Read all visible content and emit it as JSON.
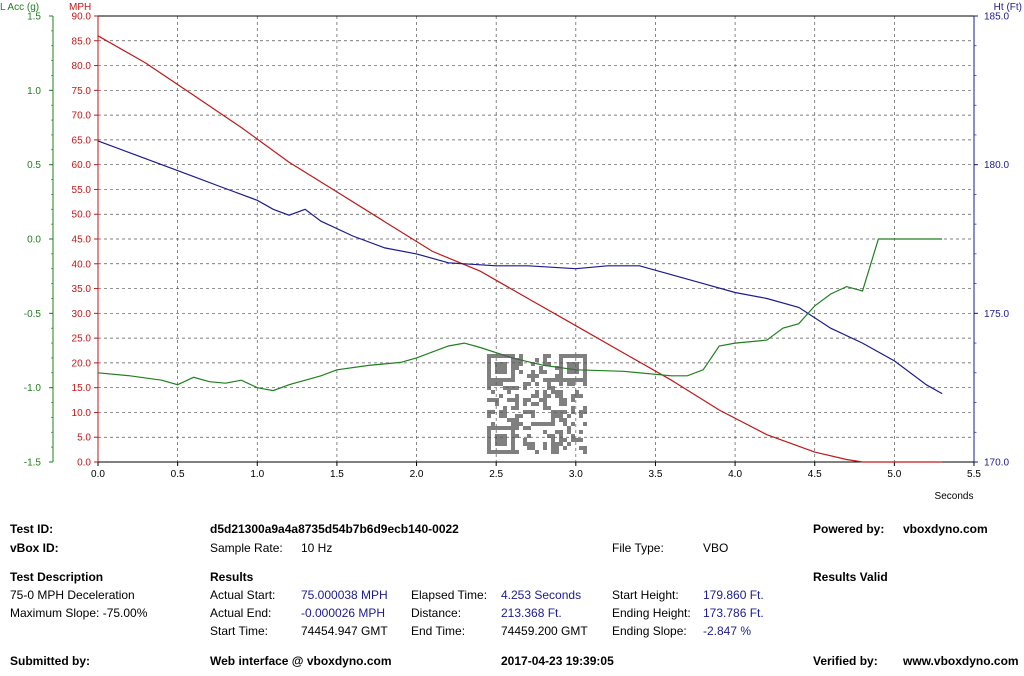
{
  "chart_data": {
    "type": "line",
    "x_label": "Seconds",
    "x_range": [
      0.0,
      5.5
    ],
    "x_ticks": [
      "0.0",
      "0.5",
      "1.0",
      "1.5",
      "2.0",
      "2.5",
      "3.0",
      "3.5",
      "4.0",
      "4.5",
      "5.0",
      "5.5"
    ],
    "grid": true,
    "axes": {
      "lacc": {
        "label": "L Acc (g)",
        "range": [
          -1.5,
          1.5
        ],
        "ticks": [
          "1.5",
          "1.0",
          "0.5",
          "0.0",
          "-0.5",
          "-1.0",
          "-1.5"
        ],
        "color": "#208020"
      },
      "mph": {
        "label": "MPH",
        "range": [
          0,
          90
        ],
        "ticks": [
          "90.0",
          "85.0",
          "80.0",
          "75.0",
          "70.0",
          "65.0",
          "60.0",
          "55.0",
          "50.0",
          "45.0",
          "40.0",
          "35.0",
          "30.0",
          "25.0",
          "20.0",
          "15.0",
          "10.0",
          "5.0",
          "0.0"
        ],
        "color": "#c01818"
      },
      "ht": {
        "label": "Ht (Ft)",
        "range": [
          170,
          185
        ],
        "ticks": [
          "185.0",
          "180.0",
          "175.0",
          "170.0"
        ],
        "color": "#1c1c8c"
      }
    },
    "series": [
      {
        "axis": "mph",
        "color": "#c01818",
        "points": [
          [
            0,
            86
          ],
          [
            0.3,
            80.5
          ],
          [
            0.6,
            74
          ],
          [
            0.9,
            67.5
          ],
          [
            1.2,
            60.5
          ],
          [
            1.5,
            54.5
          ],
          [
            1.8,
            48.5
          ],
          [
            2.1,
            42.5
          ],
          [
            2.4,
            38.5
          ],
          [
            2.7,
            33
          ],
          [
            3.0,
            27.5
          ],
          [
            3.3,
            22
          ],
          [
            3.6,
            16.5
          ],
          [
            3.9,
            10.5
          ],
          [
            4.2,
            5.5
          ],
          [
            4.5,
            2
          ],
          [
            4.7,
            0.5
          ],
          [
            4.8,
            0
          ],
          [
            5.3,
            0
          ]
        ]
      },
      {
        "axis": "ht",
        "color": "#1c1c8c",
        "points": [
          [
            0,
            180.8
          ],
          [
            0.2,
            180.4
          ],
          [
            0.4,
            180.0
          ],
          [
            0.5,
            179.8
          ],
          [
            0.6,
            179.6
          ],
          [
            0.8,
            179.2
          ],
          [
            1.0,
            178.8
          ],
          [
            1.1,
            178.5
          ],
          [
            1.2,
            178.3
          ],
          [
            1.3,
            178.5
          ],
          [
            1.4,
            178.1
          ],
          [
            1.6,
            177.6
          ],
          [
            1.8,
            177.2
          ],
          [
            2.0,
            177.0
          ],
          [
            2.2,
            176.7
          ],
          [
            2.5,
            176.6
          ],
          [
            2.7,
            176.6
          ],
          [
            3.0,
            176.5
          ],
          [
            3.2,
            176.6
          ],
          [
            3.4,
            176.6
          ],
          [
            3.6,
            176.3
          ],
          [
            3.8,
            176.0
          ],
          [
            4.0,
            175.7
          ],
          [
            4.2,
            175.5
          ],
          [
            4.4,
            175.2
          ],
          [
            4.6,
            174.5
          ],
          [
            4.8,
            174.0
          ],
          [
            5.0,
            173.4
          ],
          [
            5.2,
            172.6
          ],
          [
            5.3,
            172.3
          ]
        ]
      },
      {
        "axis": "lacc",
        "color": "#208020",
        "points": [
          [
            0,
            -0.9
          ],
          [
            0.2,
            -0.92
          ],
          [
            0.4,
            -0.95
          ],
          [
            0.5,
            -0.98
          ],
          [
            0.6,
            -0.93
          ],
          [
            0.7,
            -0.96
          ],
          [
            0.8,
            -0.97
          ],
          [
            0.9,
            -0.95
          ],
          [
            1.0,
            -1.0
          ],
          [
            1.1,
            -1.02
          ],
          [
            1.2,
            -0.98
          ],
          [
            1.4,
            -0.92
          ],
          [
            1.5,
            -0.88
          ],
          [
            1.7,
            -0.85
          ],
          [
            1.9,
            -0.83
          ],
          [
            2.0,
            -0.8
          ],
          [
            2.2,
            -0.72
          ],
          [
            2.3,
            -0.7
          ],
          [
            2.4,
            -0.73
          ],
          [
            2.6,
            -0.8
          ],
          [
            2.8,
            -0.85
          ],
          [
            3.0,
            -0.88
          ],
          [
            3.3,
            -0.89
          ],
          [
            3.6,
            -0.92
          ],
          [
            3.7,
            -0.92
          ],
          [
            3.8,
            -0.88
          ],
          [
            3.9,
            -0.72
          ],
          [
            4.0,
            -0.7
          ],
          [
            4.2,
            -0.68
          ],
          [
            4.3,
            -0.6
          ],
          [
            4.4,
            -0.57
          ],
          [
            4.5,
            -0.45
          ],
          [
            4.6,
            -0.37
          ],
          [
            4.7,
            -0.32
          ],
          [
            4.8,
            -0.35
          ],
          [
            4.9,
            0
          ],
          [
            5.3,
            0
          ]
        ]
      }
    ]
  },
  "info": {
    "test_id_label": "Test ID:",
    "test_id_value": "d5d21300a9a4a8735d54b7b6d9ecb140-0022",
    "powered_label": "Powered by:",
    "powered_value": "vboxdyno.com",
    "vbox_id_label": "vBox ID:",
    "sample_rate_label": "Sample Rate:",
    "sample_rate_value": "10 Hz",
    "file_type_label": "File Type:",
    "file_type_value": "VBO",
    "test_desc_label": "Test Description",
    "test_desc_line1": "75-0 MPH Deceleration",
    "test_desc_line2": "Maximum Slope:  -75.00%",
    "results_label": "Results",
    "results_valid": "Results Valid",
    "actual_start_label": "Actual Start:",
    "actual_start_value": "75.000038 MPH",
    "actual_end_label": "Actual End:",
    "actual_end_value": "-0.000026 MPH",
    "start_time_label": "Start Time:",
    "start_time_value": "74454.947 GMT",
    "elapsed_label": "Elapsed Time:",
    "elapsed_value": "4.253 Seconds",
    "distance_label": "Distance:",
    "distance_value": "213.368 Ft.",
    "end_time_label": "End Time:",
    "end_time_value": "74459.200 GMT",
    "start_height_label": "Start Height:",
    "start_height_value": "179.860 Ft.",
    "ending_height_label": "Ending Height:",
    "ending_height_value": "173.786 Ft.",
    "ending_slope_label": "Ending Slope:",
    "ending_slope_value": "-2.847 %",
    "submitted_label": "Submitted by:",
    "web_interface": "Web interface @ vboxdyno.com",
    "timestamp": "2017-04-23 19:39:05",
    "verified_label": "Verified by:",
    "verified_value": "www.vboxdyno.com"
  }
}
